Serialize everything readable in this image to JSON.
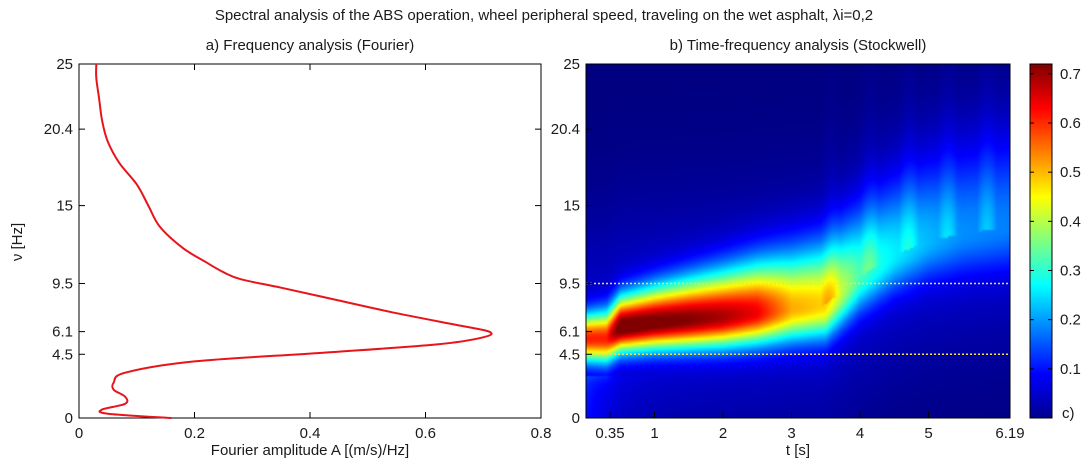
{
  "figure_title": "Spectral analysis of the ABS operation, wheel peripheral speed, traveling on the wet asphalt, λi=0,2",
  "chart_data": [
    {
      "type": "line",
      "subtitle": "a) Frequency analysis (Fourier)",
      "xlabel": "Fourier amplitude A [(m/s)/Hz]",
      "ylabel": "ν [Hz]",
      "xlim": [
        0,
        0.8
      ],
      "ylim": [
        0,
        25
      ],
      "xticks": [
        "0",
        "0.2",
        "0.4",
        "0.6",
        "0.8"
      ],
      "xtick_values": [
        0,
        0.2,
        0.4,
        0.6,
        0.8
      ],
      "yticks": [
        "0",
        "4.5",
        "6.1",
        "9.5",
        "15",
        "20.4",
        "25"
      ],
      "ytick_values": [
        0,
        4.5,
        6.1,
        9.5,
        15,
        20.4,
        25
      ],
      "line_color": "#e8141b",
      "series": [
        {
          "amplitude": [
            0.16,
            0.05,
            0.04,
            0.08,
            0.08,
            0.06,
            0.06,
            0.08,
            0.2,
            0.42,
            0.62,
            0.7,
            0.71,
            0.65,
            0.55,
            0.45,
            0.35,
            0.28,
            0.25,
            0.22,
            0.18,
            0.14,
            0.12,
            0.1,
            0.07,
            0.05,
            0.04,
            0.035,
            0.03,
            0.03
          ],
          "frequency": [
            0.0,
            0.3,
            0.6,
            1.0,
            1.5,
            2.0,
            2.5,
            3.2,
            4.0,
            4.6,
            5.2,
            5.7,
            6.1,
            6.6,
            7.4,
            8.3,
            9.2,
            9.8,
            10.3,
            11.0,
            12.0,
            13.5,
            15.0,
            16.5,
            18.0,
            19.5,
            21.0,
            22.5,
            24.0,
            25.0
          ]
        }
      ]
    },
    {
      "type": "heatmap",
      "subtitle": "b) Time-frequency analysis (Stockwell)",
      "xlabel": "t [s]",
      "xlim": [
        0,
        6.19
      ],
      "ylim": [
        0,
        25
      ],
      "xticks": [
        "0.35",
        "1",
        "2",
        "3",
        "4",
        "5",
        "6.19"
      ],
      "xtick_values": [
        0.35,
        1,
        2,
        3,
        4,
        5,
        6.19
      ],
      "yticks": [
        "0",
        "4.5",
        "6.1",
        "9.5",
        "15",
        "20.4",
        "25"
      ],
      "ytick_values": [
        0,
        4.5,
        6.1,
        9.5,
        15,
        20.4,
        25
      ],
      "reference_lines_hz": [
        4.5,
        9.5
      ],
      "reference_line_color": "#f2e24a",
      "colorbar": {
        "ticks": [
          "0.1",
          "0.2",
          "0.3",
          "0.4",
          "0.5",
          "0.6",
          "0.7"
        ],
        "tick_values": [
          0.1,
          0.2,
          0.3,
          0.4,
          0.5,
          0.6,
          0.7
        ],
        "range": [
          0,
          0.72
        ],
        "label": "c)",
        "colormap": "jet"
      },
      "ridge": {
        "time": [
          0.3,
          0.5,
          1.0,
          1.5,
          2.0,
          2.5,
          3.0,
          3.5,
          4.0,
          4.5,
          5.0,
          5.5,
          6.19
        ],
        "center_freq": [
          5.6,
          6.4,
          6.7,
          6.9,
          7.1,
          7.4,
          7.7,
          8.0,
          10.0,
          11.5,
          12.5,
          13.0,
          13.5
        ],
        "peak_value": [
          0.55,
          0.7,
          0.68,
          0.66,
          0.63,
          0.58,
          0.45,
          0.42,
          0.26,
          0.2,
          0.16,
          0.13,
          0.12
        ]
      }
    }
  ]
}
